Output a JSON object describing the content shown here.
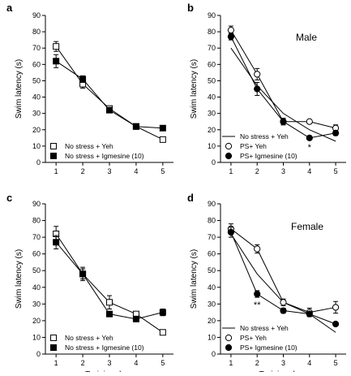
{
  "chart_data": [
    {
      "type": "line",
      "panel": "a",
      "sex_label": "",
      "xlabel": "",
      "ylabel": "Swim latency (s)",
      "x": [
        1,
        2,
        3,
        4,
        5
      ],
      "xlim": [
        0.6,
        5.4
      ],
      "ylim": [
        0,
        90
      ],
      "yticks": [
        0,
        10,
        20,
        30,
        40,
        50,
        60,
        70,
        80,
        90
      ],
      "series": [
        {
          "name": "No stress + Yeh",
          "marker": "open-square",
          "values": [
            71,
            48,
            33,
            22,
            14
          ],
          "errors": [
            3,
            2.5,
            1.5,
            1,
            1
          ]
        },
        {
          "name": "No stress + Igmesine (10)",
          "marker": "filled-square",
          "values": [
            62,
            51,
            32,
            22,
            21
          ],
          "errors": [
            4,
            2,
            1,
            1,
            1
          ]
        }
      ],
      "annotations": []
    },
    {
      "type": "line",
      "panel": "b",
      "sex_label": "Male",
      "xlabel": "",
      "ylabel": "Swim latency (s)",
      "x": [
        1,
        2,
        3,
        4,
        5
      ],
      "xlim": [
        0.6,
        5.4
      ],
      "ylim": [
        0,
        90
      ],
      "yticks": [
        0,
        10,
        20,
        30,
        40,
        50,
        60,
        70,
        80,
        90
      ],
      "series": [
        {
          "name": "No stress + Yeh",
          "marker": "line",
          "values": [
            70,
            47,
            30,
            20,
            13
          ],
          "errors": []
        },
        {
          "name": "PS+ Yeh",
          "marker": "open-circle",
          "values": [
            81,
            54,
            25,
            25,
            21
          ],
          "errors": [
            2.5,
            3.5,
            2,
            1,
            2
          ]
        },
        {
          "name": "PS+ Igmesine (10)",
          "marker": "filled-circle",
          "values": [
            77,
            45,
            25,
            15,
            18
          ],
          "errors": [
            2,
            4,
            2,
            1,
            1.5
          ]
        }
      ],
      "annotations": [
        {
          "text": "*",
          "x": 4
        }
      ]
    },
    {
      "type": "line",
      "panel": "c",
      "sex_label": "",
      "xlabel": "Training days",
      "ylabel": "Swim latency (s)",
      "x": [
        1,
        2,
        3,
        4,
        5
      ],
      "xlim": [
        0.6,
        5.4
      ],
      "ylim": [
        0,
        90
      ],
      "yticks": [
        0,
        10,
        20,
        30,
        40,
        50,
        60,
        70,
        80,
        90
      ],
      "series": [
        {
          "name": "No stress + Yeh",
          "marker": "open-square",
          "values": [
            72,
            48,
            31,
            24,
            13
          ],
          "errors": [
            4.5,
            4,
            4,
            1,
            1
          ]
        },
        {
          "name": "No stress + Igmesine (10)",
          "marker": "filled-square",
          "values": [
            67,
            48,
            24,
            21,
            25
          ],
          "errors": [
            4,
            3,
            1,
            1,
            2
          ]
        }
      ],
      "annotations": []
    },
    {
      "type": "line",
      "panel": "d",
      "sex_label": "Female",
      "xlabel": "Training days",
      "ylabel": "Swim latency (s)",
      "x": [
        1,
        2,
        3,
        4,
        5
      ],
      "xlim": [
        0.6,
        5.4
      ],
      "ylim": [
        0,
        90
      ],
      "yticks": [
        0,
        10,
        20,
        30,
        40,
        50,
        60,
        70,
        80,
        90
      ],
      "series": [
        {
          "name": "No stress + Yeh",
          "marker": "line",
          "values": [
            72,
            48,
            31,
            24,
            13
          ],
          "errors": []
        },
        {
          "name": "PS+ Yeh",
          "marker": "open-circle",
          "values": [
            75,
            63,
            31,
            25,
            28
          ],
          "errors": [
            3,
            2.5,
            2,
            2.5,
            3.5
          ]
        },
        {
          "name": "PS+ Igmesine (10)",
          "marker": "filled-circle",
          "values": [
            73,
            36,
            26,
            24,
            18
          ],
          "errors": [
            3,
            2,
            1.5,
            1.5,
            1
          ]
        }
      ],
      "annotations": [
        {
          "text": "**",
          "x": 2
        }
      ]
    }
  ]
}
